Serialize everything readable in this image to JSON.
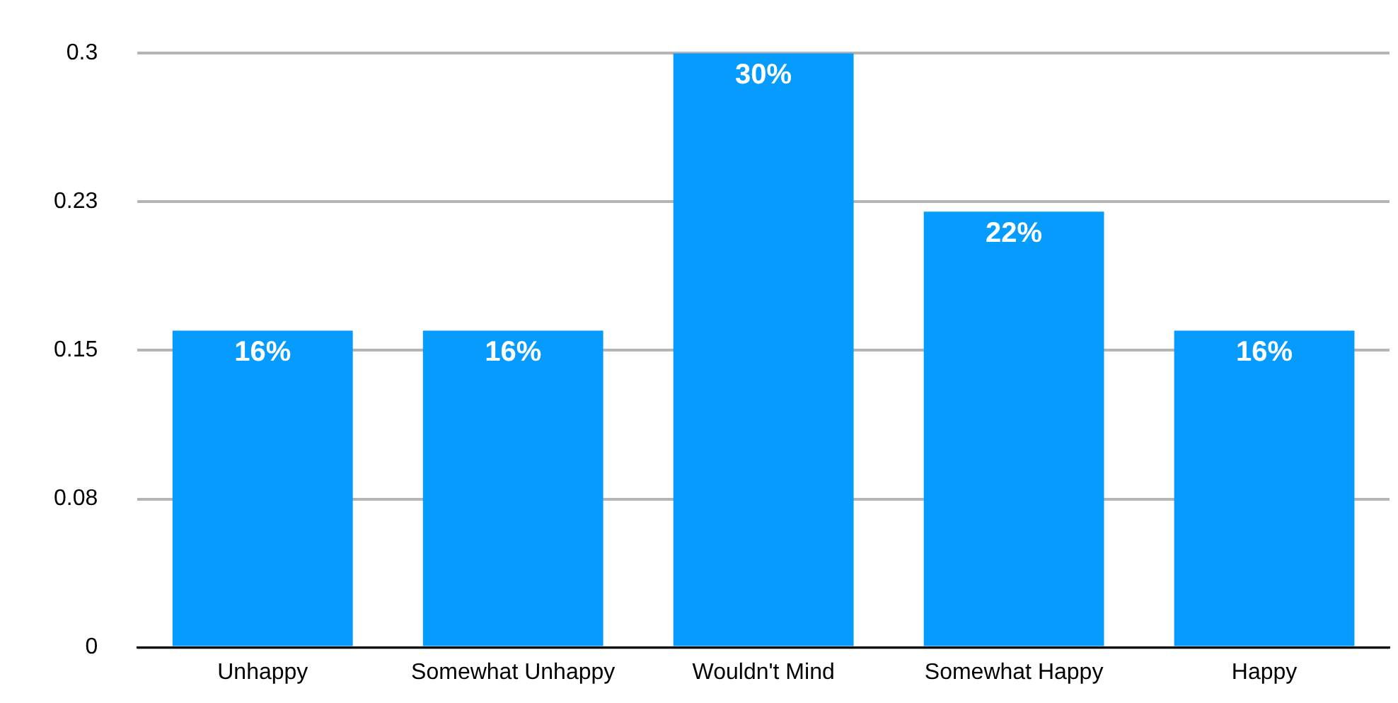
{
  "chart_data": {
    "type": "bar",
    "categories": [
      "Unhappy",
      "Somewhat Unhappy",
      "Wouldn't Mind",
      "Somewhat Happy",
      "Happy"
    ],
    "values": [
      0.16,
      0.16,
      0.3,
      0.22,
      0.16
    ],
    "value_labels": [
      "16%",
      "16%",
      "30%",
      "22%",
      "16%"
    ],
    "color": "#069cff",
    "ylim": [
      0,
      0.3
    ],
    "yticks": [
      0,
      {
        "value": 0.075,
        "label": "0.08"
      },
      0.15,
      {
        "value": 0.225,
        "label": "0.23"
      },
      0.3
    ],
    "grid": "y",
    "legend": false
  }
}
